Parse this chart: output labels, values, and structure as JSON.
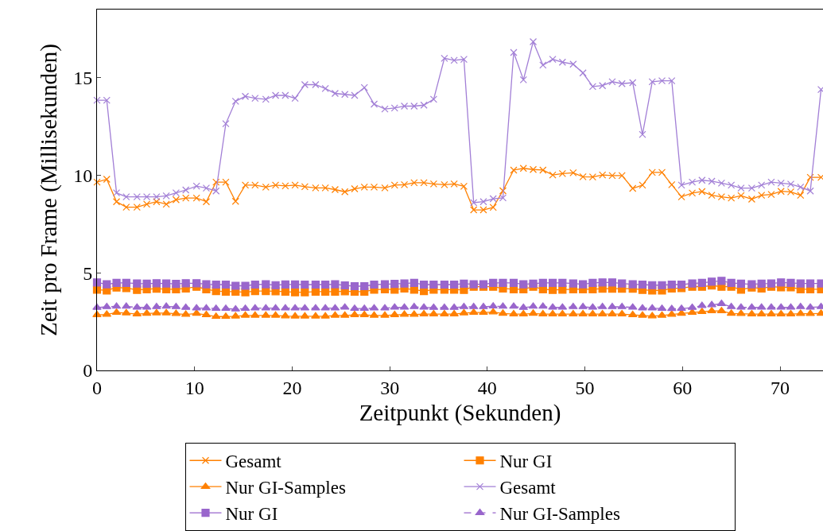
{
  "chart_data": {
    "type": "line",
    "xlabel": "Zeitpunkt (Sekunden)",
    "ylabel": "Zeit pro Frame (Millisekunden)",
    "x": [
      0,
      1.0,
      2.0,
      3.0,
      4.1,
      5.1,
      6.1,
      7.1,
      8.1,
      9.1,
      10.2,
      11.2,
      12.2,
      13.2,
      14.2,
      15.2,
      16.2,
      17.3,
      18.3,
      19.3,
      20.3,
      21.3,
      22.4,
      23.4,
      24.4,
      25.4,
      26.4,
      27.4,
      28.4,
      29.5,
      30.5,
      31.5,
      32.5,
      33.5,
      34.5,
      35.6,
      36.6,
      37.6,
      38.6,
      39.6,
      40.6,
      41.6,
      42.7,
      43.7,
      44.7,
      45.7,
      46.7,
      47.7,
      48.8,
      49.8,
      50.8,
      51.8,
      52.8,
      53.8,
      54.9,
      55.9,
      56.9,
      57.9,
      58.9,
      59.9,
      61.0,
      62.0,
      63.0,
      64.0,
      65.0,
      66.0,
      67.1,
      68.1,
      69.1,
      70.1,
      71.1,
      72.1,
      73.1,
      74.2
    ],
    "xlim": [
      0,
      74.4
    ],
    "xticks": [
      0,
      10,
      20,
      30,
      40,
      50,
      60,
      70
    ],
    "ylim": [
      0,
      18.5
    ],
    "yticks": [
      0,
      5,
      10,
      15
    ],
    "grid": false,
    "legend": "bottom",
    "series": [
      {
        "name": "Gesamt",
        "color": "#ff8000",
        "marker": "cross",
        "line_style": "solid",
        "values": [
          9.65,
          9.8,
          8.65,
          8.37,
          8.37,
          8.52,
          8.65,
          8.52,
          8.75,
          8.84,
          8.84,
          8.65,
          9.65,
          9.65,
          8.67,
          9.5,
          9.5,
          9.4,
          9.5,
          9.46,
          9.5,
          9.42,
          9.36,
          9.36,
          9.27,
          9.16,
          9.31,
          9.4,
          9.4,
          9.36,
          9.5,
          9.52,
          9.62,
          9.62,
          9.56,
          9.52,
          9.56,
          9.44,
          8.23,
          8.23,
          8.36,
          9.21,
          10.27,
          10.36,
          10.3,
          10.27,
          10.02,
          10.09,
          10.13,
          9.93,
          9.92,
          10.02,
          9.99,
          9.99,
          9.33,
          9.5,
          10.15,
          10.15,
          9.52,
          8.9,
          9.09,
          9.17,
          8.98,
          8.9,
          8.84,
          8.96,
          8.78,
          8.98,
          9.02,
          9.18,
          9.15,
          8.98,
          9.9,
          9.9
        ]
      },
      {
        "name": "Nur GI",
        "color": "#ff8000",
        "marker": "square",
        "line_style": "solid",
        "values": [
          4.14,
          4.1,
          4.25,
          4.22,
          4.13,
          4.16,
          4.19,
          4.16,
          4.16,
          4.2,
          4.29,
          4.16,
          4.07,
          4.04,
          4.04,
          4.01,
          4.07,
          4.07,
          4.06,
          4.04,
          4.01,
          4.01,
          4.04,
          4.04,
          4.04,
          4.06,
          4.04,
          4.04,
          4.14,
          4.16,
          4.14,
          4.2,
          4.14,
          4.07,
          4.14,
          4.14,
          4.14,
          4.13,
          4.29,
          4.29,
          4.29,
          4.2,
          4.16,
          4.16,
          4.29,
          4.16,
          4.13,
          4.14,
          4.16,
          4.16,
          4.16,
          4.19,
          4.19,
          4.19,
          4.19,
          4.13,
          4.1,
          4.1,
          4.2,
          4.22,
          4.29,
          4.29,
          4.35,
          4.29,
          4.29,
          4.14,
          4.25,
          4.2,
          4.29,
          4.26,
          4.26,
          4.16,
          4.16,
          4.16
        ]
      },
      {
        "name": "Nur GI-Samples",
        "color": "#ff8000",
        "marker": "triangle",
        "line_style": "solid",
        "values": [
          2.85,
          2.87,
          2.97,
          2.94,
          2.89,
          2.92,
          2.94,
          2.94,
          2.91,
          2.87,
          2.92,
          2.85,
          2.76,
          2.76,
          2.78,
          2.82,
          2.82,
          2.82,
          2.82,
          2.79,
          2.78,
          2.78,
          2.78,
          2.78,
          2.82,
          2.82,
          2.85,
          2.85,
          2.82,
          2.82,
          2.85,
          2.87,
          2.87,
          2.89,
          2.89,
          2.89,
          2.89,
          2.94,
          2.97,
          2.97,
          2.99,
          2.92,
          2.89,
          2.89,
          2.92,
          2.89,
          2.89,
          2.89,
          2.89,
          2.89,
          2.89,
          2.89,
          2.89,
          2.89,
          2.85,
          2.82,
          2.79,
          2.82,
          2.87,
          2.92,
          2.97,
          3.01,
          3.05,
          3.05,
          2.92,
          2.91,
          2.89,
          2.89,
          2.89,
          2.89,
          2.89,
          2.91,
          2.91,
          2.92
        ]
      },
      {
        "name": "Gesamt",
        "color": "#a27fd6",
        "marker": "cross",
        "line_style": "solid",
        "values": [
          13.85,
          13.85,
          9.1,
          8.9,
          8.9,
          8.9,
          8.9,
          8.95,
          9.1,
          9.25,
          9.45,
          9.35,
          9.2,
          12.65,
          13.8,
          14.05,
          13.95,
          13.9,
          14.1,
          14.1,
          13.95,
          14.65,
          14.65,
          14.45,
          14.2,
          14.15,
          14.1,
          14.5,
          13.65,
          13.4,
          13.45,
          13.55,
          13.55,
          13.6,
          13.9,
          16.0,
          15.9,
          15.95,
          8.6,
          8.65,
          8.8,
          8.85,
          16.3,
          14.9,
          16.85,
          15.65,
          15.95,
          15.8,
          15.7,
          15.25,
          14.55,
          14.6,
          14.8,
          14.7,
          14.75,
          12.1,
          14.8,
          14.85,
          14.85,
          9.5,
          9.65,
          9.75,
          9.7,
          9.6,
          9.5,
          9.35,
          9.35,
          9.5,
          9.65,
          9.6,
          9.55,
          9.4,
          9.2,
          14.4
        ]
      },
      {
        "name": "Nur GI",
        "color": "#9966cc",
        "marker": "square",
        "line_style": "solid",
        "values": [
          4.51,
          4.42,
          4.49,
          4.49,
          4.46,
          4.45,
          4.47,
          4.46,
          4.44,
          4.47,
          4.47,
          4.42,
          4.4,
          4.4,
          4.34,
          4.34,
          4.4,
          4.42,
          4.37,
          4.41,
          4.41,
          4.4,
          4.4,
          4.4,
          4.42,
          4.36,
          4.32,
          4.32,
          4.4,
          4.42,
          4.44,
          4.46,
          4.49,
          4.4,
          4.4,
          4.4,
          4.4,
          4.45,
          4.42,
          4.42,
          4.49,
          4.49,
          4.49,
          4.42,
          4.45,
          4.49,
          4.49,
          4.49,
          4.46,
          4.42,
          4.49,
          4.51,
          4.51,
          4.46,
          4.42,
          4.4,
          4.37,
          4.37,
          4.4,
          4.4,
          4.46,
          4.49,
          4.55,
          4.59,
          4.49,
          4.45,
          4.42,
          4.45,
          4.46,
          4.51,
          4.49,
          4.46,
          4.46,
          4.46
        ]
      },
      {
        "name": "Nur GI-Samples",
        "color": "#9966cc",
        "marker": "triangle",
        "line_style": "dashed",
        "values": [
          3.22,
          3.26,
          3.28,
          3.28,
          3.23,
          3.23,
          3.26,
          3.28,
          3.26,
          3.22,
          3.19,
          3.19,
          3.17,
          3.17,
          3.14,
          3.17,
          3.19,
          3.19,
          3.19,
          3.19,
          3.19,
          3.19,
          3.19,
          3.19,
          3.19,
          3.23,
          3.17,
          3.17,
          3.19,
          3.19,
          3.23,
          3.23,
          3.26,
          3.23,
          3.22,
          3.22,
          3.22,
          3.26,
          3.26,
          3.26,
          3.29,
          3.28,
          3.28,
          3.22,
          3.28,
          3.28,
          3.23,
          3.23,
          3.26,
          3.26,
          3.23,
          3.26,
          3.26,
          3.26,
          3.23,
          3.19,
          3.19,
          3.17,
          3.16,
          3.17,
          3.22,
          3.32,
          3.36,
          3.42,
          3.26,
          3.23,
          3.23,
          3.23,
          3.23,
          3.23,
          3.23,
          3.26,
          3.23,
          3.26
        ]
      }
    ]
  }
}
